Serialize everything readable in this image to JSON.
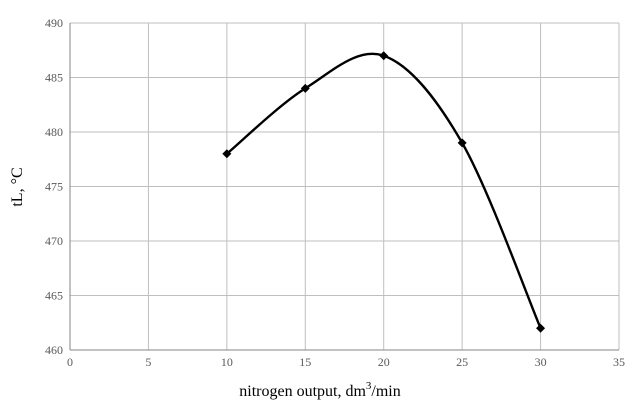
{
  "chart_data": {
    "type": "scatter",
    "title": "",
    "xlabel": "nitrogen output, dm",
    "xlabel_sup": "3",
    "xlabel_suffix": "/min",
    "ylabel": "tL, °C",
    "xlim": [
      0,
      35
    ],
    "ylim": [
      460,
      490
    ],
    "xticks": [
      0,
      5,
      10,
      15,
      20,
      25,
      30,
      35
    ],
    "yticks": [
      460,
      465,
      470,
      475,
      480,
      485,
      490
    ],
    "grid": true,
    "smooth_line": true,
    "line_color": "#000000",
    "marker": "diamond",
    "series": [
      {
        "x": [
          10,
          15,
          20,
          25,
          30
        ],
        "y": [
          478,
          484,
          487,
          479,
          462
        ]
      }
    ]
  }
}
